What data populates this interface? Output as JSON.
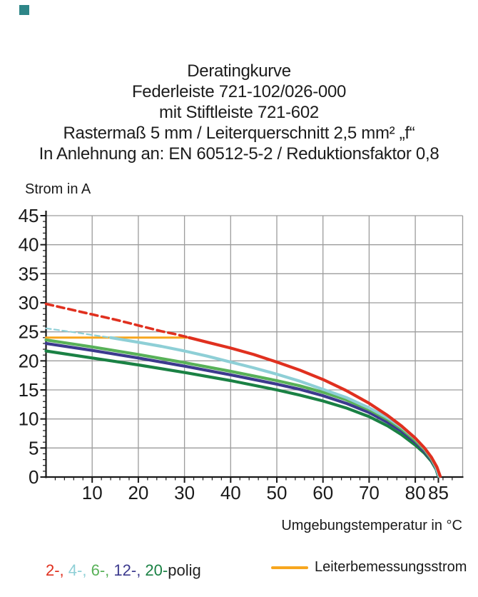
{
  "page": {
    "corner_mark_color": "#2e8688",
    "background": "#ffffff"
  },
  "title_block": {
    "lines": [
      "Deratingkurve",
      "Federleiste 721-102/026-000",
      "mit Stiftleiste 721-602",
      "Rastermaß 5 mm / Leiterquerschnitt 2,5 mm² „f“",
      "In Anlehnung an: EN 60512-5-2 / Reduktionsfaktor 0,8"
    ]
  },
  "chart_data": {
    "type": "line",
    "title": "Deratingkurve",
    "ylabel": "Strom in A",
    "xlabel": "Umgebungstemperatur in °C",
    "xlim": [
      0,
      90
    ],
    "ylim": [
      0,
      45
    ],
    "grid": true,
    "grid_color": "#9c9c9c",
    "axis_color": "#1a1a1a",
    "y_major_ticks": [
      0,
      5,
      10,
      15,
      20,
      25,
      30,
      35,
      40,
      45
    ],
    "y_minor_step": 1,
    "y_minor_range": [
      1,
      44
    ],
    "x_major_ticks": [
      10,
      20,
      30,
      40,
      50,
      60,
      70,
      80,
      85
    ],
    "x_gridline_ticks": [
      10,
      20,
      30,
      40,
      50,
      60,
      70,
      80
    ],
    "x_minor_step": 2,
    "x_minor_range": [
      2,
      88
    ],
    "series": [
      {
        "id": "leiterbemessungsstrom",
        "name": "Leiterbemessungsstrom",
        "color": "#f7a61f",
        "style": "solid",
        "width": 3,
        "points": [
          [
            0,
            24
          ],
          [
            31,
            24
          ]
        ]
      },
      {
        "id": "20-polig",
        "name": "20-polig",
        "color": "#1a8144",
        "style": "solid",
        "width": 4.2,
        "points": [
          [
            0,
            21.7
          ],
          [
            10,
            20.5
          ],
          [
            20,
            19.3
          ],
          [
            30,
            18.0
          ],
          [
            40,
            16.6
          ],
          [
            50,
            15.0
          ],
          [
            55,
            14.1
          ],
          [
            60,
            13.1
          ],
          [
            65,
            11.9
          ],
          [
            70,
            10.4
          ],
          [
            74,
            8.8
          ],
          [
            77,
            7.3
          ],
          [
            80,
            5.5
          ],
          [
            82,
            4.1
          ],
          [
            83.5,
            2.7
          ],
          [
            84.5,
            1.35
          ],
          [
            85,
            0.1
          ]
        ]
      },
      {
        "id": "12-polig",
        "name": "12-polig",
        "color": "#3c3a8e",
        "style": "solid",
        "width": 4.2,
        "points": [
          [
            0,
            23.0
          ],
          [
            10,
            21.8
          ],
          [
            20,
            20.5
          ],
          [
            30,
            19.1
          ],
          [
            40,
            17.6
          ],
          [
            50,
            16.0
          ],
          [
            55,
            15.1
          ],
          [
            60,
            14.0
          ],
          [
            65,
            12.7
          ],
          [
            70,
            11.1
          ],
          [
            74,
            9.4
          ],
          [
            77,
            7.9
          ],
          [
            80,
            6.0
          ],
          [
            82,
            4.4
          ],
          [
            83.5,
            2.9
          ],
          [
            84.5,
            1.5
          ],
          [
            85.05,
            0.12
          ]
        ]
      },
      {
        "id": "6-polig",
        "name": "6-polig",
        "color": "#58b158",
        "style": "solid",
        "width": 4.2,
        "points": [
          [
            0,
            23.6
          ],
          [
            10,
            22.4
          ],
          [
            20,
            21.1
          ],
          [
            30,
            19.7
          ],
          [
            40,
            18.2
          ],
          [
            50,
            16.6
          ],
          [
            55,
            15.7
          ],
          [
            60,
            14.6
          ],
          [
            65,
            13.3
          ],
          [
            70,
            11.6
          ],
          [
            74,
            9.9
          ],
          [
            77,
            8.3
          ],
          [
            80,
            6.3
          ],
          [
            82,
            4.7
          ],
          [
            83.5,
            3.1
          ],
          [
            84.5,
            1.6
          ],
          [
            85.1,
            0.15
          ]
        ]
      },
      {
        "id": "4-polig",
        "name": "4-polig",
        "color": "#8ecfd6",
        "style": "solid",
        "width": 4.2,
        "points": [
          [
            14,
            24.0
          ],
          [
            20,
            23.2
          ],
          [
            25,
            22.5
          ],
          [
            30,
            21.7
          ],
          [
            35,
            20.8
          ],
          [
            40,
            19.8
          ],
          [
            45,
            18.8
          ],
          [
            50,
            17.7
          ],
          [
            55,
            16.5
          ],
          [
            60,
            15.1
          ],
          [
            65,
            13.7
          ],
          [
            70,
            11.9
          ],
          [
            74,
            10.2
          ],
          [
            77,
            8.6
          ],
          [
            80,
            6.6
          ],
          [
            82,
            4.9
          ],
          [
            83.5,
            3.3
          ],
          [
            84.5,
            1.7
          ],
          [
            85.15,
            0.15
          ]
        ]
      },
      {
        "id": "4-polig-dashed",
        "name": "4-polig (oberhalb Leiterbemessungsstrom, gestrichelt)",
        "color": "#8ecfd6",
        "style": "dashed",
        "dash": "7 4.5",
        "width": 2.2,
        "points": [
          [
            0,
            25.6
          ],
          [
            4,
            25.15
          ],
          [
            8,
            24.7
          ],
          [
            11,
            24.35
          ],
          [
            14,
            24.0
          ]
        ]
      },
      {
        "id": "2-polig",
        "name": "2-polig",
        "color": "#e0301f",
        "style": "solid",
        "width": 4.2,
        "points": [
          [
            31,
            24.0
          ],
          [
            35,
            23.2
          ],
          [
            40,
            22.2
          ],
          [
            45,
            21.1
          ],
          [
            50,
            19.8
          ],
          [
            55,
            18.4
          ],
          [
            60,
            16.8
          ],
          [
            65,
            14.9
          ],
          [
            70,
            12.7
          ],
          [
            74,
            10.6
          ],
          [
            77,
            8.8
          ],
          [
            80,
            6.7
          ],
          [
            82,
            5.0
          ],
          [
            83.5,
            3.4
          ],
          [
            84.7,
            1.7
          ],
          [
            85.4,
            0.15
          ]
        ]
      },
      {
        "id": "2-polig-dashed",
        "name": "2-polig (oberhalb Leiterbemessungsstrom, gestrichelt)",
        "color": "#e0301f",
        "style": "dashed",
        "dash": "10 6",
        "width": 3.6,
        "points": [
          [
            0,
            29.8
          ],
          [
            5,
            28.9
          ],
          [
            10,
            28.0
          ],
          [
            15,
            27.1
          ],
          [
            20,
            26.1
          ],
          [
            25,
            25.1
          ],
          [
            28,
            24.6
          ],
          [
            31,
            24.0
          ]
        ]
      }
    ]
  },
  "legend": {
    "poles_segments": [
      {
        "text": "2-,",
        "color": "#e0301f"
      },
      {
        "text": " 4-,",
        "color": "#8ecfd6"
      },
      {
        "text": " 6-,",
        "color": "#58b158"
      },
      {
        "text": " 12-,",
        "color": "#3c3a8e"
      },
      {
        "text": " 20-",
        "color": "#1a8144"
      },
      {
        "text": "polig",
        "color": "#232323"
      }
    ],
    "rated": {
      "label": "Leiterbemessungsstrom",
      "swatch_color": "#f7a61f"
    }
  }
}
